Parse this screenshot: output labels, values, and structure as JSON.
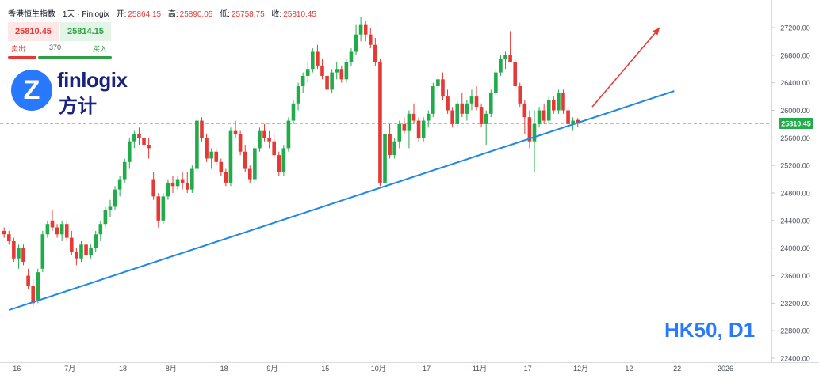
{
  "header": {
    "title": "香港恒生指数 · 1天 · Finlogix",
    "open_label": "开:",
    "open": "25864.15",
    "high_label": "高:",
    "high": "25890.05",
    "low_label": "低:",
    "low": "25758.75",
    "close_label": "收:",
    "close": "25810.45"
  },
  "trade": {
    "sell_price": "25810.45",
    "buy_price": "25814.15",
    "sell_label": "卖出",
    "spread": "370",
    "buy_label": "买入"
  },
  "logo": {
    "name": "finlogix",
    "cn": "方计",
    "mark": "Z"
  },
  "symbol_label": "HK50, D1",
  "colors": {
    "up": "#22ab4a",
    "down": "#e53935",
    "trend": "#1e88e5",
    "arrow": "#e53935",
    "last_price": "#22ab4a"
  },
  "chart_data": {
    "type": "candlestick",
    "y_ticks": [
      "27200.00",
      "26800.00",
      "26400.00",
      "26000.00",
      "25600.00",
      "25200.00",
      "24800.00",
      "24400.00",
      "24000.00",
      "23600.00",
      "23200.00",
      "22800.00",
      "22400.00"
    ],
    "ylim": [
      22400,
      27500
    ],
    "last_price": "25810.45",
    "x_ticks": [
      {
        "label": "16",
        "i": 0
      },
      {
        "label": "7月",
        "i": 11
      },
      {
        "label": "18",
        "i": 22
      },
      {
        "label": "8月",
        "i": 32
      },
      {
        "label": "18",
        "i": 43
      },
      {
        "label": "9月",
        "i": 53
      },
      {
        "label": "15",
        "i": 64
      },
      {
        "label": "10月",
        "i": 75
      },
      {
        "label": "17",
        "i": 85
      },
      {
        "label": "11月",
        "i": 96
      },
      {
        "label": "17",
        "i": 106
      },
      {
        "label": "12月",
        "i": 117
      },
      {
        "label": "12",
        "i": 127
      },
      {
        "label": "22",
        "i": 137
      },
      {
        "label": "2026",
        "i": 147
      }
    ],
    "candles": [
      [
        24250,
        24300,
        24150,
        24200
      ],
      [
        24200,
        24250,
        24050,
        24100
      ],
      [
        24100,
        24150,
        23800,
        23850
      ],
      [
        23850,
        24050,
        23700,
        24000
      ],
      [
        24000,
        24050,
        23750,
        23800
      ],
      [
        23600,
        23700,
        23400,
        23450
      ],
      [
        23450,
        23550,
        23150,
        23200
      ],
      [
        23250,
        23700,
        23200,
        23650
      ],
      [
        23700,
        24250,
        23650,
        24200
      ],
      [
        24200,
        24400,
        24150,
        24350
      ],
      [
        24400,
        24550,
        24250,
        24300
      ],
      [
        24300,
        24350,
        24150,
        24200
      ],
      [
        24200,
        24400,
        24100,
        24350
      ],
      [
        24350,
        24400,
        24100,
        24150
      ],
      [
        24150,
        24250,
        23900,
        23950
      ],
      [
        23950,
        24000,
        23750,
        23850
      ],
      [
        23850,
        24100,
        23800,
        24050
      ],
      [
        24050,
        24100,
        23850,
        23900
      ],
      [
        23900,
        24050,
        23850,
        24000
      ],
      [
        24000,
        24250,
        23950,
        24200
      ],
      [
        24200,
        24400,
        24100,
        24350
      ],
      [
        24350,
        24600,
        24300,
        24550
      ],
      [
        24550,
        24700,
        24450,
        24600
      ],
      [
        24600,
        24900,
        24550,
        24850
      ],
      [
        24850,
        25050,
        24750,
        25000
      ],
      [
        25000,
        25300,
        24950,
        25250
      ],
      [
        25250,
        25600,
        25150,
        25550
      ],
      [
        25550,
        25700,
        25450,
        25650
      ],
      [
        25650,
        25750,
        25500,
        25600
      ],
      [
        25600,
        25700,
        25400,
        25500
      ],
      [
        25500,
        25600,
        25300,
        25450
      ],
      [
        25000,
        25100,
        24700,
        24750
      ],
      [
        24750,
        24800,
        24300,
        24400
      ],
      [
        24400,
        24800,
        24350,
        24750
      ],
      [
        24750,
        25000,
        24700,
        24950
      ],
      [
        24950,
        25050,
        24800,
        24900
      ],
      [
        24900,
        25050,
        24850,
        25000
      ],
      [
        25000,
        25100,
        24850,
        24950
      ],
      [
        24950,
        25100,
        24800,
        24850
      ],
      [
        24850,
        25200,
        24800,
        25150
      ],
      [
        25150,
        25900,
        25100,
        25850
      ],
      [
        25850,
        25900,
        25550,
        25600
      ],
      [
        25600,
        25650,
        25250,
        25300
      ],
      [
        25300,
        25450,
        25150,
        25400
      ],
      [
        25400,
        25450,
        25200,
        25250
      ],
      [
        25250,
        25300,
        25050,
        25100
      ],
      [
        25100,
        25150,
        24900,
        24950
      ],
      [
        24950,
        25750,
        24900,
        25700
      ],
      [
        25700,
        25850,
        25600,
        25650
      ],
      [
        25650,
        25700,
        25350,
        25400
      ],
      [
        25400,
        25500,
        25100,
        25150
      ],
      [
        25150,
        25200,
        24950,
        25000
      ],
      [
        25000,
        25500,
        24950,
        25450
      ],
      [
        25450,
        25750,
        25400,
        25700
      ],
      [
        25700,
        25800,
        25550,
        25600
      ],
      [
        25600,
        25700,
        25450,
        25550
      ],
      [
        25550,
        25650,
        25300,
        25350
      ],
      [
        25350,
        25400,
        25050,
        25100
      ],
      [
        25100,
        25500,
        25050,
        25450
      ],
      [
        25450,
        25900,
        25400,
        25850
      ],
      [
        25850,
        26150,
        25800,
        26100
      ],
      [
        26100,
        26400,
        26000,
        26350
      ],
      [
        26350,
        26550,
        26250,
        26500
      ],
      [
        26500,
        26700,
        26400,
        26600
      ],
      [
        26600,
        26900,
        26550,
        26850
      ],
      [
        26850,
        26950,
        26600,
        26650
      ],
      [
        26650,
        26750,
        26450,
        26500
      ],
      [
        26500,
        26550,
        26250,
        26300
      ],
      [
        26300,
        26600,
        26250,
        26550
      ],
      [
        26550,
        26700,
        26450,
        26600
      ],
      [
        26600,
        26650,
        26400,
        26450
      ],
      [
        26450,
        26750,
        26400,
        26700
      ],
      [
        26700,
        26900,
        26650,
        26850
      ],
      [
        26850,
        27250,
        26800,
        27100
      ],
      [
        27100,
        27350,
        27000,
        27250
      ],
      [
        27250,
        27300,
        27000,
        27100
      ],
      [
        27100,
        27200,
        26900,
        26950
      ],
      [
        26950,
        27050,
        26650,
        26700
      ],
      [
        26700,
        26750,
        24900,
        24950
      ],
      [
        24950,
        25700,
        24950,
        25650
      ],
      [
        25650,
        25800,
        25300,
        25350
      ],
      [
        25350,
        25600,
        25300,
        25550
      ],
      [
        25550,
        25850,
        25450,
        25800
      ],
      [
        25800,
        25900,
        25650,
        25700
      ],
      [
        25700,
        26000,
        25450,
        25950
      ],
      [
        25950,
        26100,
        25800,
        25850
      ],
      [
        25850,
        25900,
        25550,
        25600
      ],
      [
        25600,
        25900,
        25550,
        25850
      ],
      [
        25850,
        26000,
        25750,
        25950
      ],
      [
        25950,
        26400,
        25900,
        26350
      ],
      [
        26350,
        26500,
        26200,
        26450
      ],
      [
        26450,
        26550,
        26150,
        26200
      ],
      [
        26200,
        26300,
        25950,
        26000
      ],
      [
        26000,
        26050,
        25750,
        25800
      ],
      [
        25800,
        26150,
        25750,
        26100
      ],
      [
        26100,
        26250,
        25900,
        25950
      ],
      [
        25950,
        26150,
        25850,
        26100
      ],
      [
        26100,
        26300,
        26000,
        26200
      ],
      [
        26200,
        26350,
        26000,
        26050
      ],
      [
        26050,
        26100,
        25750,
        25800
      ],
      [
        25800,
        26000,
        25500,
        25950
      ],
      [
        25950,
        26300,
        25900,
        26250
      ],
      [
        26250,
        26600,
        26200,
        26550
      ],
      [
        26550,
        26800,
        26500,
        26750
      ],
      [
        26750,
        26850,
        26600,
        26800
      ],
      [
        26800,
        27150,
        26700,
        26700
      ],
      [
        26700,
        26750,
        26300,
        26350
      ],
      [
        26350,
        26400,
        26050,
        26100
      ],
      [
        26100,
        26150,
        25650,
        25900
      ],
      [
        25900,
        26000,
        25450,
        25550
      ],
      [
        25550,
        26000,
        25100,
        25800
      ],
      [
        25800,
        26050,
        25750,
        26000
      ],
      [
        26000,
        26100,
        25800,
        25850
      ],
      [
        25850,
        26200,
        25800,
        26150
      ],
      [
        26150,
        26200,
        25950,
        26000
      ],
      [
        26000,
        26300,
        25950,
        26250
      ],
      [
        26250,
        26300,
        25950,
        26000
      ],
      [
        26000,
        26050,
        25700,
        25800
      ],
      [
        25800,
        25900,
        25700,
        25850
      ],
      [
        25860,
        25890,
        25760,
        25810
      ]
    ],
    "trendline": [
      [
        1,
        23100
      ],
      [
        139,
        26280
      ]
    ],
    "arrow": [
      [
        122,
        26050
      ],
      [
        136,
        27200
      ]
    ]
  }
}
